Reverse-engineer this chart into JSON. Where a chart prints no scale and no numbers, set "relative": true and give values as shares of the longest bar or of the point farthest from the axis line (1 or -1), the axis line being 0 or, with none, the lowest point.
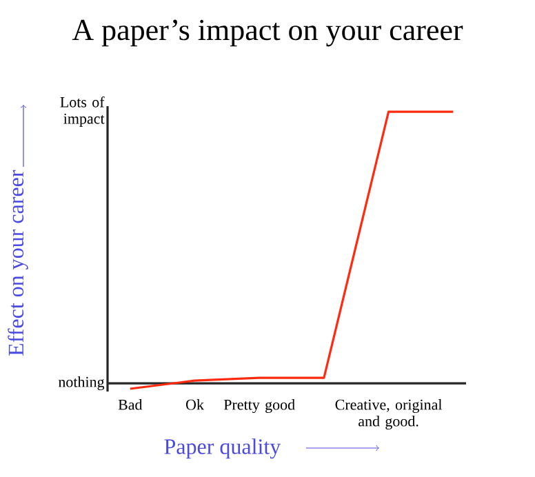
{
  "chart_data": {
    "type": "line",
    "title": "A paper’s impact on your career",
    "xlabel": "Paper quality",
    "ylabel": "Effect on your career",
    "categories": [
      "Bad",
      "Ok",
      "Pretty good",
      null,
      "Creative, original and good.",
      null
    ],
    "relative": true,
    "series": [
      {
        "color": "#ff2a10",
        "values": [
          -0.02,
          0.01,
          0.02,
          0.02,
          1,
          1
        ]
      }
    ],
    "annotations": [
      "nothing",
      "Lots of impact"
    ],
    "marker": "none",
    "line_style": "solid"
  }
}
